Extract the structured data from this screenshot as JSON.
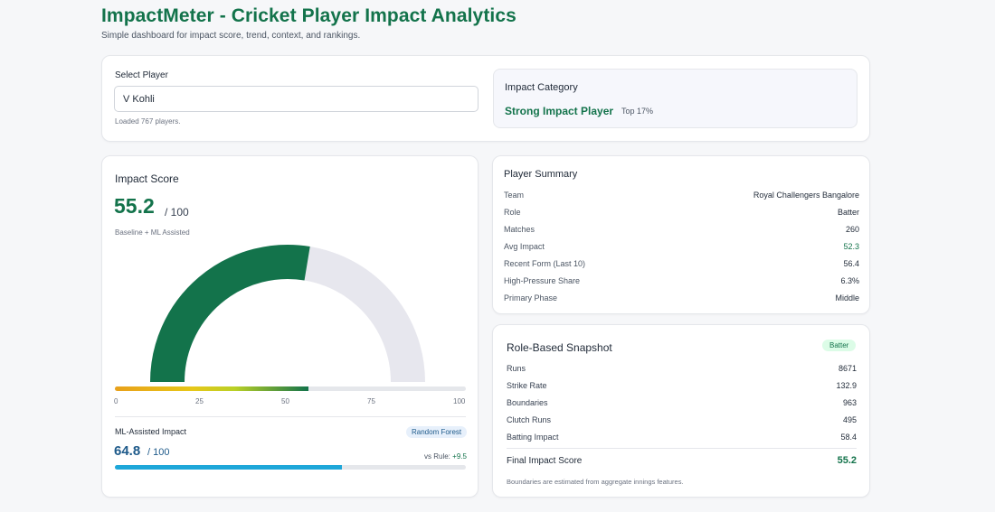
{
  "header": {
    "title": "ImpactMeter - Cricket Player Impact Analytics",
    "subtitle": "Simple dashboard for impact score, trend, context, and rankings."
  },
  "select": {
    "label": "Select Player",
    "value": "V Kohli",
    "loaded_note": "Loaded 767 players."
  },
  "category": {
    "label": "Impact Category",
    "value": "Strong Impact Player",
    "rank": "Top 17%"
  },
  "impact": {
    "title": "Impact Score",
    "value": "55.2",
    "max_text": "/ 100",
    "method": "Baseline + ML Assisted",
    "score_number": 55.2,
    "gauge_color": "#13734b",
    "track_color": "#e7e7ee",
    "ticks": [
      "0",
      "25",
      "50",
      "75",
      "100"
    ]
  },
  "ml": {
    "label": "ML-Assisted Impact",
    "model": "Random Forest",
    "value": "64.8",
    "max_text": "/ 100",
    "score_number": 64.8,
    "vs_rule_label": "vs Rule:",
    "vs_rule_delta": "+9.5",
    "bar_color": "#1ea7d9"
  },
  "summary": {
    "title": "Player Summary",
    "rows": [
      {
        "key": "Team",
        "value": "Royal Challengers Bangalore"
      },
      {
        "key": "Role",
        "value": "Batter"
      },
      {
        "key": "Matches",
        "value": "260"
      },
      {
        "key": "Avg Impact",
        "value": "52.3"
      },
      {
        "key": "Recent Form (Last 10)",
        "value": "56.4"
      },
      {
        "key": "High-Pressure Share",
        "value": "6.3%"
      },
      {
        "key": "Primary Phase",
        "value": "Middle"
      }
    ]
  },
  "snapshot": {
    "title": "Role-Based Snapshot",
    "role_badge": "Batter",
    "rows": [
      {
        "key": "Runs",
        "value": "8671"
      },
      {
        "key": "Strike Rate",
        "value": "132.9"
      },
      {
        "key": "Boundaries",
        "value": "963"
      },
      {
        "key": "Clutch Runs",
        "value": "495"
      },
      {
        "key": "Batting Impact",
        "value": "58.4"
      }
    ],
    "final_label": "Final Impact Score",
    "final_value": "55.2",
    "note": "Boundaries are estimated from aggregate innings features."
  }
}
